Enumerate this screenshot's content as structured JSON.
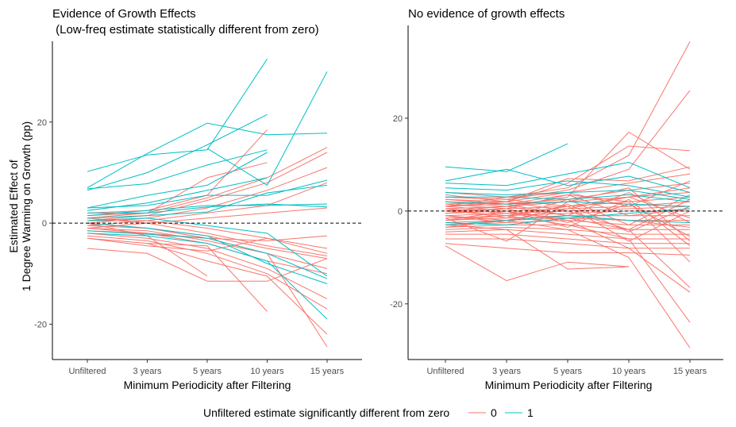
{
  "chart_data": [
    {
      "type": "line",
      "title_line1": "Evidence of Growth Effects",
      "title_line2": " (Low-freq estimate statistically different from zero)",
      "xlabel": "Minimum Periodicity after Filtering",
      "ylabel_line1": "Estimated Effect of",
      "ylabel_line2": "1 Degree Warming on Growth (pp)",
      "categories": [
        "Unfiltered",
        "3 years",
        "5 years",
        "10 years",
        "15 years"
      ],
      "ylim": [
        -27,
        36
      ],
      "yticks": [
        -20,
        0,
        20
      ],
      "reference_line": 0,
      "grid": false,
      "series": [
        {
          "name": "1",
          "values": [
            10.2,
            13.5,
            14.5,
            32.5,
            null
          ]
        },
        {
          "name": "1",
          "values": [
            7.0,
            13.8,
            19.8,
            17.5,
            17.8
          ]
        },
        {
          "name": "1",
          "values": [
            6.5,
            10.0,
            15.5,
            21.5,
            null
          ]
        },
        {
          "name": "1",
          "values": [
            6.8,
            7.8,
            11.5,
            14.5,
            null
          ]
        },
        {
          "name": "1",
          "values": [
            null,
            null,
            14.8,
            7.5,
            30.0
          ]
        },
        {
          "name": "1",
          "values": [
            3.0,
            5.5,
            7.5,
            14.0,
            null
          ]
        },
        {
          "name": "1",
          "values": [
            2.5,
            4.0,
            6.5,
            9.0,
            null
          ]
        },
        {
          "name": "1",
          "values": [
            3.0,
            3.5,
            5.5,
            5.5,
            8.5
          ]
        },
        {
          "name": "1",
          "values": [
            1.5,
            2.5,
            3.5,
            3.5,
            3.8
          ]
        },
        {
          "name": "1",
          "values": [
            2.0,
            2.0,
            3.2,
            3.8,
            3.2
          ]
        },
        {
          "name": "1",
          "values": [
            1.0,
            1.5,
            2.2,
            6.0,
            7.5
          ]
        },
        {
          "name": "1",
          "values": [
            0.5,
            1.0,
            -0.5,
            -2.0,
            -10.5
          ]
        },
        {
          "name": "1",
          "values": [
            -1.5,
            -2.2,
            -3.0,
            -6.0,
            -11.0
          ]
        },
        {
          "name": "1",
          "values": [
            -2.0,
            -2.5,
            -4.0,
            -7.5,
            -19.0
          ]
        },
        {
          "name": "1",
          "values": [
            0.0,
            -1.0,
            -2.5,
            -8.0,
            -12.0
          ]
        },
        {
          "name": "0",
          "values": [
            2.0,
            2.5,
            5.5,
            18.5,
            null
          ]
        },
        {
          "name": "0",
          "values": [
            1.5,
            2.0,
            5.0,
            9.0,
            15.0
          ]
        },
        {
          "name": "0",
          "values": [
            1.0,
            2.0,
            9.0,
            12.0,
            null
          ]
        },
        {
          "name": "0",
          "values": [
            0.5,
            1.5,
            4.5,
            8.0,
            14.0
          ]
        },
        {
          "name": "0",
          "values": [
            0.0,
            1.0,
            3.0,
            6.5,
            11.0
          ]
        },
        {
          "name": "0",
          "values": [
            -0.5,
            0.5,
            2.0,
            3.5,
            8.0
          ]
        },
        {
          "name": "0",
          "values": [
            -1.0,
            0.0,
            1.0,
            2.0,
            3.0
          ]
        },
        {
          "name": "0",
          "values": [
            0.5,
            0.5,
            -1.0,
            -3.0,
            -6.0
          ]
        },
        {
          "name": "0",
          "values": [
            1.0,
            0.0,
            -2.0,
            -4.5,
            -6.5
          ]
        },
        {
          "name": "0",
          "values": [
            -0.5,
            -1.0,
            -2.5,
            -5.0,
            -7.0
          ]
        },
        {
          "name": "0",
          "values": [
            -1.0,
            -1.5,
            -3.5,
            -6.0,
            -9.0
          ]
        },
        {
          "name": "0",
          "values": [
            -1.5,
            -2.0,
            -4.0,
            -7.5,
            -10.0
          ]
        },
        {
          "name": "0",
          "values": [
            -2.0,
            -3.0,
            -5.0,
            -9.0,
            -15.0
          ]
        },
        {
          "name": "0",
          "values": [
            -2.5,
            -3.5,
            -6.0,
            -10.0,
            -17.0
          ]
        },
        {
          "name": "0",
          "values": [
            -3.0,
            -4.0,
            -7.5,
            -10.5,
            -22.0
          ]
        },
        {
          "name": "0",
          "values": [
            0.0,
            -1.0,
            -3.0,
            -6.0,
            -24.5
          ]
        },
        {
          "name": "0",
          "values": [
            -1.0,
            -2.0,
            -3.0,
            -3.5,
            -2.5
          ]
        },
        {
          "name": "0",
          "values": [
            -5.0,
            -6.0,
            -11.5,
            -11.5,
            -7.0
          ]
        },
        {
          "name": "0",
          "values": [
            -3.0,
            -4.5,
            -5.5,
            -3.0,
            -5.0
          ]
        },
        {
          "name": "0",
          "values": [
            0.0,
            -2.5,
            -10.5,
            null,
            null
          ]
        },
        {
          "name": "0",
          "values": [
            null,
            -4.0,
            -4.5,
            -17.5,
            null
          ]
        }
      ]
    },
    {
      "type": "line",
      "title": "No evidence of growth effects",
      "xlabel": "Minimum Periodicity after Filtering",
      "categories": [
        "Unfiltered",
        "3 years",
        "5 years",
        "10 years",
        "15 years"
      ],
      "ylim": [
        -32,
        40
      ],
      "yticks": [
        -20,
        0,
        20
      ],
      "reference_line": 0,
      "grid": false,
      "series": [
        {
          "name": "1",
          "values": [
            9.5,
            8.5,
            14.5,
            null,
            null
          ]
        },
        {
          "name": "1",
          "values": [
            6.5,
            9.0,
            5.5,
            7.5,
            4.0
          ]
        },
        {
          "name": "1",
          "values": [
            6.0,
            5.5,
            8.0,
            10.5,
            5.0
          ]
        },
        {
          "name": "1",
          "values": [
            5.0,
            4.5,
            6.5,
            5.5,
            3.0
          ]
        },
        {
          "name": "1",
          "values": [
            4.0,
            3.5,
            4.0,
            4.5,
            2.5
          ]
        },
        {
          "name": "1",
          "values": [
            3.0,
            3.0,
            2.5,
            3.5,
            2.0
          ]
        },
        {
          "name": "1",
          "values": [
            2.0,
            1.5,
            2.0,
            1.5,
            1.0
          ]
        },
        {
          "name": "1",
          "values": [
            -2.5,
            -3.0,
            -1.5,
            -0.5,
            0.5
          ]
        },
        {
          "name": "1",
          "values": [
            -3.0,
            -2.0,
            -1.0,
            -2.0,
            -2.5
          ]
        },
        {
          "name": "0",
          "values": [
            4.0,
            3.0,
            5.0,
            12.0,
            36.5
          ]
        },
        {
          "name": "0",
          "values": [
            3.0,
            2.5,
            4.5,
            9.0,
            26.0
          ]
        },
        {
          "name": "0",
          "values": [
            2.5,
            2.0,
            6.0,
            14.0,
            13.0
          ]
        },
        {
          "name": "0",
          "values": [
            2.0,
            1.0,
            3.0,
            17.0,
            9.0
          ]
        },
        {
          "name": "0",
          "values": [
            1.5,
            2.0,
            4.0,
            6.0,
            8.0
          ]
        },
        {
          "name": "0",
          "values": [
            1.0,
            1.5,
            2.5,
            4.5,
            6.0
          ]
        },
        {
          "name": "0",
          "values": [
            0.5,
            1.0,
            2.0,
            3.0,
            4.0
          ]
        },
        {
          "name": "0",
          "values": [
            0.0,
            0.5,
            1.0,
            2.0,
            3.0
          ]
        },
        {
          "name": "0",
          "values": [
            -0.5,
            0.0,
            0.5,
            1.0,
            2.0
          ]
        },
        {
          "name": "0",
          "values": [
            -1.0,
            -0.5,
            0.0,
            0.5,
            1.0
          ]
        },
        {
          "name": "0",
          "values": [
            -1.5,
            -1.0,
            -0.5,
            0.0,
            0.0
          ]
        },
        {
          "name": "0",
          "values": [
            -2.0,
            -1.5,
            -1.0,
            -1.0,
            -1.0
          ]
        },
        {
          "name": "0",
          "values": [
            -2.5,
            -2.0,
            -1.5,
            -2.0,
            -2.0
          ]
        },
        {
          "name": "0",
          "values": [
            -3.0,
            -2.5,
            -2.0,
            -3.0,
            -3.0
          ]
        },
        {
          "name": "0",
          "values": [
            -3.5,
            -3.0,
            -3.0,
            -4.0,
            -4.0
          ]
        },
        {
          "name": "0",
          "values": [
            -4.0,
            -3.5,
            -4.0,
            -5.0,
            -5.0
          ]
        },
        {
          "name": "0",
          "values": [
            -4.5,
            -4.0,
            -5.0,
            -6.0,
            -6.0
          ]
        },
        {
          "name": "0",
          "values": [
            -5.0,
            -5.0,
            -6.0,
            -7.0,
            -7.0
          ]
        },
        {
          "name": "0",
          "values": [
            -6.0,
            -6.0,
            -7.0,
            -8.0,
            -8.0
          ]
        },
        {
          "name": "0",
          "values": [
            -7.0,
            -8.0,
            -9.0,
            -9.0,
            -9.5
          ]
        },
        {
          "name": "0",
          "values": [
            -7.5,
            -15.0,
            -11.0,
            -12.0,
            null
          ]
        },
        {
          "name": "0",
          "values": [
            -3.0,
            -4.0,
            -12.5,
            -12.0,
            null
          ]
        },
        {
          "name": "0",
          "values": [
            1.0,
            0.0,
            -2.0,
            -8.0,
            -17.5
          ]
        },
        {
          "name": "0",
          "values": [
            0.0,
            -1.0,
            -3.0,
            -6.0,
            -24.0
          ]
        },
        {
          "name": "0",
          "values": [
            -1.0,
            -2.0,
            -4.0,
            -10.0,
            -29.5
          ]
        },
        {
          "name": "0",
          "values": [
            0.5,
            -0.5,
            -1.5,
            -4.0,
            -16.5
          ]
        },
        {
          "name": "0",
          "values": [
            2.5,
            1.5,
            3.5,
            2.0,
            -11.0
          ]
        },
        {
          "name": "0",
          "values": [
            3.5,
            2.0,
            0.0,
            -4.0,
            2.5
          ]
        },
        {
          "name": "0",
          "values": [
            -1.5,
            -6.5,
            2.0,
            5.0,
            -6.5
          ]
        },
        {
          "name": "0",
          "values": [
            1.0,
            2.0,
            7.0,
            6.5,
            9.5
          ]
        },
        {
          "name": "0",
          "values": [
            -2.0,
            -1.0,
            1.0,
            3.0,
            5.0
          ]
        },
        {
          "name": "0",
          "values": [
            0.0,
            1.0,
            -1.0,
            -2.0,
            -3.5
          ]
        },
        {
          "name": "0",
          "values": [
            -0.5,
            0.5,
            3.5,
            -1.0,
            0.5
          ]
        },
        {
          "name": "0",
          "values": [
            1.5,
            0.5,
            -2.5,
            1.5,
            -5.5
          ]
        },
        {
          "name": "0",
          "values": [
            -1.0,
            -2.5,
            1.5,
            -4.5,
            1.0
          ]
        },
        {
          "name": "0",
          "values": [
            2.0,
            1.5,
            -1.0,
            4.0,
            -2.5
          ]
        },
        {
          "name": "0",
          "values": [
            0.5,
            -1.5,
            2.5,
            -3.0,
            3.5
          ]
        },
        {
          "name": "0",
          "values": [
            -2.0,
            0.0,
            -3.5,
            2.5,
            -7.5
          ]
        },
        {
          "name": "0",
          "values": [
            3.0,
            2.5,
            1.0,
            -6.5,
            0.0
          ]
        },
        {
          "name": "0",
          "values": [
            -3.5,
            -2.0,
            0.5,
            3.0,
            -1.5
          ]
        },
        {
          "name": "0",
          "values": [
            1.0,
            3.0,
            4.0,
            1.0,
            6.5
          ]
        }
      ]
    }
  ],
  "legend": {
    "title": "Unfiltered estimate significantly different from zero",
    "items": [
      {
        "label": "0",
        "color": "#F8766D"
      },
      {
        "label": "1",
        "color": "#00BFC4"
      }
    ]
  },
  "colors": {
    "0": "#F8766D",
    "1": "#00BFC4",
    "axis": "#000000",
    "tick_text": "#4d4d4d"
  }
}
